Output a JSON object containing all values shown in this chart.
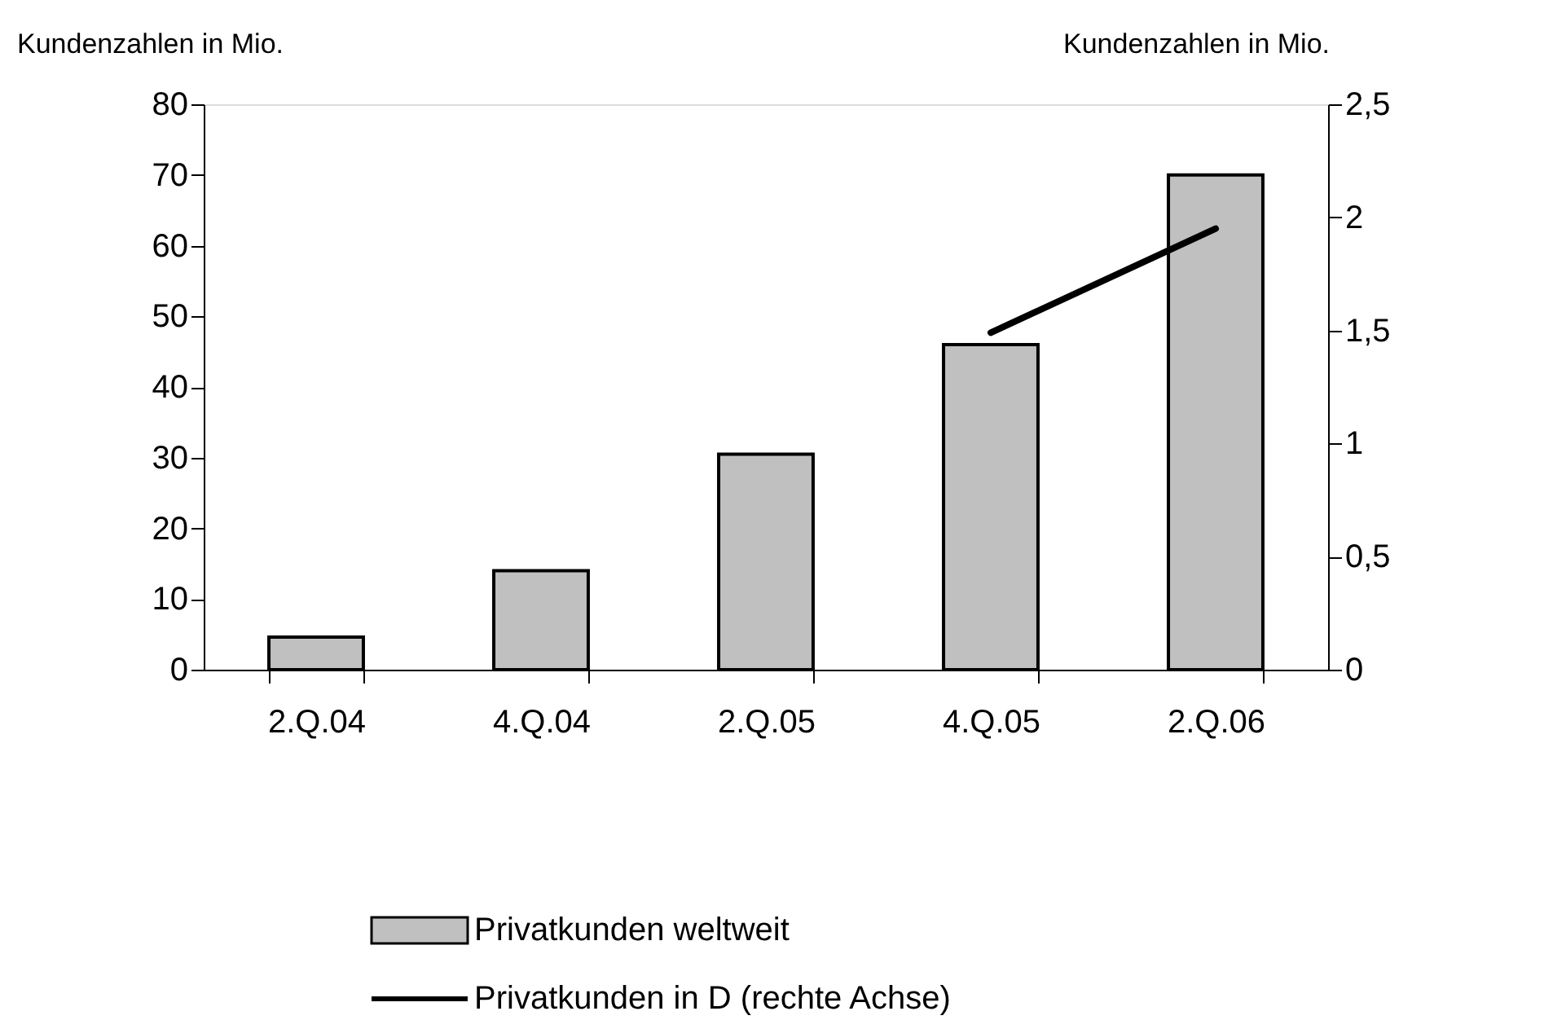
{
  "chart_data": {
    "type": "bar",
    "categories": [
      "2.Q.04",
      "4.Q.04",
      "2.Q.05",
      "4.Q.05",
      "2.Q.06"
    ],
    "ylabel": "Kundenzahlen in Mio.",
    "y2label": "Kundenzahlen in Mio.",
    "ylim": [
      0,
      80
    ],
    "yticks": [
      0,
      10,
      20,
      30,
      40,
      50,
      60,
      70,
      80
    ],
    "y2lim": [
      0,
      2.5
    ],
    "y2ticks": [
      {
        "value": 0,
        "label": "0"
      },
      {
        "value": 0.5,
        "label": "0,5"
      },
      {
        "value": 1,
        "label": "1"
      },
      {
        "value": 1.5,
        "label": "1,5"
      },
      {
        "value": 2,
        "label": "2"
      },
      {
        "value": 2.5,
        "label": "2,5"
      }
    ],
    "series": [
      {
        "name": "Privatkunden weltweit",
        "color": "#c0c0c0",
        "values": [
          4.6,
          14,
          30.5,
          46,
          70
        ]
      },
      {
        "name": "Privatkunden in D (rechte Achse)",
        "type": "line",
        "axis": "y2",
        "color": "#000000",
        "values": [
          null,
          null,
          null,
          1.49,
          1.95
        ]
      }
    ],
    "legend": "bottom",
    "grid": false
  }
}
